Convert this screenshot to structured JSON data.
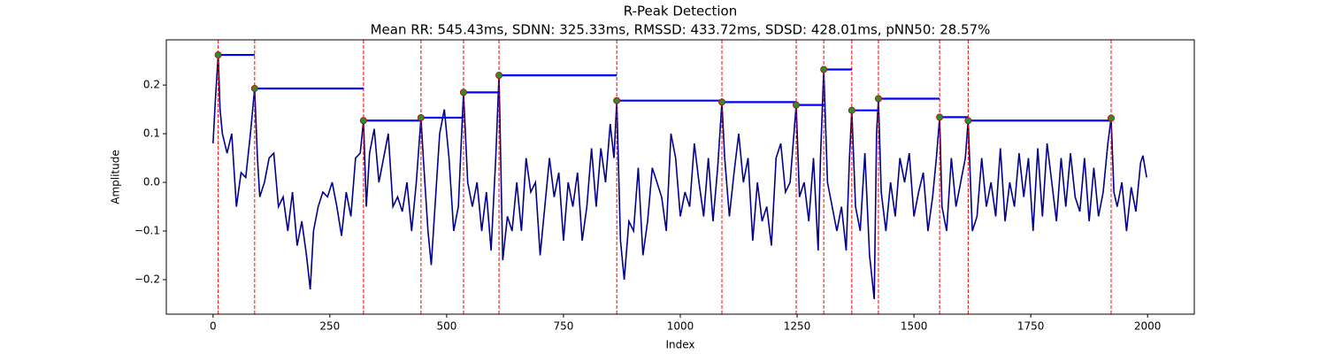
{
  "chart_data": {
    "type": "line",
    "title": "R-Peak Detection",
    "subtitle": "Mean RR: 545.43ms, SDNN: 325.33ms, RMSSD: 433.72ms, SDSD: 428.01ms, pNN50: 28.57%",
    "xlabel": "Index",
    "ylabel": "Amplitude",
    "xlim": [
      -100,
      2100
    ],
    "ylim": [
      -0.271,
      0.293
    ],
    "xticks": [
      0,
      250,
      500,
      750,
      1000,
      1250,
      1500,
      1750,
      2000
    ],
    "yticks": [
      {
        "value": -0.2,
        "label": "−0.2"
      },
      {
        "value": -0.1,
        "label": "−0.1"
      },
      {
        "value": 0,
        "label": "0.0"
      },
      0.1,
      0.2
    ],
    "series": [
      {
        "color": "#00008b",
        "x": [
          0,
          5,
          11,
          15,
          20,
          30,
          40,
          50,
          60,
          70,
          80,
          89,
          95,
          100,
          110,
          120,
          130,
          140,
          150,
          160,
          170,
          180,
          190,
          200,
          208,
          215,
          225,
          235,
          245,
          255,
          265,
          275,
          285,
          295,
          305,
          315,
          322,
          328,
          335,
          345,
          355,
          365,
          375,
          385,
          395,
          405,
          415,
          425,
          435,
          445,
          450,
          460,
          467,
          475,
          485,
          495,
          505,
          515,
          525,
          536,
          545,
          555,
          565,
          575,
          585,
          595,
          605,
          612,
          620,
          630,
          640,
          650,
          660,
          670,
          680,
          690,
          700,
          710,
          720,
          730,
          740,
          750,
          760,
          770,
          780,
          790,
          800,
          810,
          820,
          830,
          840,
          850,
          858,
          864,
          872,
          880,
          890,
          900,
          910,
          920,
          930,
          940,
          950,
          960,
          970,
          980,
          990,
          1000,
          1010,
          1020,
          1030,
          1040,
          1050,
          1060,
          1070,
          1080,
          1089,
          1095,
          1105,
          1115,
          1125,
          1135,
          1145,
          1155,
          1165,
          1175,
          1185,
          1195,
          1205,
          1215,
          1225,
          1235,
          1248,
          1255,
          1265,
          1275,
          1285,
          1295,
          1300,
          1307,
          1315,
          1325,
          1335,
          1345,
          1355,
          1362,
          1367,
          1375,
          1385,
          1395,
          1405,
          1415,
          1420,
          1424,
          1430,
          1440,
          1450,
          1460,
          1470,
          1480,
          1490,
          1500,
          1510,
          1520,
          1530,
          1540,
          1548,
          1555,
          1560,
          1570,
          1580,
          1590,
          1600,
          1610,
          1616,
          1625,
          1635,
          1645,
          1655,
          1665,
          1675,
          1685,
          1695,
          1705,
          1715,
          1725,
          1735,
          1745,
          1755,
          1765,
          1775,
          1785,
          1795,
          1805,
          1815,
          1825,
          1835,
          1845,
          1855,
          1865,
          1875,
          1885,
          1895,
          1905,
          1915,
          1922,
          1928,
          1935,
          1945,
          1955,
          1965,
          1975,
          1985,
          1990,
          1998
        ],
        "values": [
          0.08,
          0.17,
          0.262,
          0.15,
          0.1,
          0.06,
          0.1,
          -0.05,
          0.02,
          0.01,
          0.1,
          0.193,
          0.05,
          -0.03,
          0.0,
          0.05,
          0.06,
          -0.05,
          -0.03,
          -0.1,
          -0.02,
          -0.13,
          -0.08,
          -0.15,
          -0.22,
          -0.1,
          -0.05,
          -0.02,
          -0.03,
          0.0,
          -0.05,
          -0.11,
          -0.02,
          -0.07,
          0.05,
          0.06,
          0.127,
          -0.05,
          0.06,
          0.11,
          0.0,
          0.05,
          0.1,
          -0.05,
          -0.03,
          -0.06,
          0.0,
          -0.1,
          0.0,
          0.133,
          0.05,
          -0.1,
          -0.17,
          -0.05,
          0.1,
          0.15,
          0.05,
          -0.1,
          -0.05,
          0.185,
          0.0,
          -0.05,
          0.0,
          -0.1,
          -0.02,
          -0.14,
          0.05,
          0.22,
          -0.16,
          -0.07,
          -0.1,
          0.0,
          -0.1,
          0.05,
          -0.02,
          0.0,
          -0.15,
          -0.05,
          0.05,
          -0.03,
          0.02,
          -0.12,
          0.0,
          -0.05,
          0.02,
          -0.12,
          -0.05,
          0.07,
          -0.05,
          0.07,
          0.0,
          0.12,
          0.05,
          0.168,
          -0.12,
          -0.2,
          -0.08,
          -0.1,
          0.03,
          -0.15,
          -0.08,
          0.03,
          0.0,
          -0.03,
          -0.1,
          0.1,
          0.05,
          -0.07,
          -0.02,
          -0.05,
          0.08,
          0.0,
          -0.07,
          0.05,
          -0.08,
          0.03,
          0.165,
          0.05,
          -0.07,
          0.02,
          0.1,
          0.0,
          0.05,
          -0.12,
          0.0,
          -0.08,
          -0.05,
          -0.13,
          0.05,
          0.08,
          -0.02,
          0.0,
          0.159,
          -0.03,
          0.0,
          -0.08,
          0.05,
          -0.14,
          0.05,
          0.232,
          0.0,
          -0.05,
          -0.1,
          -0.05,
          -0.14,
          0.05,
          0.148,
          -0.05,
          -0.1,
          0.06,
          -0.15,
          -0.24,
          0.1,
          0.172,
          -0.02,
          -0.1,
          0.0,
          -0.07,
          0.05,
          0.0,
          0.06,
          -0.07,
          -0.02,
          0.02,
          -0.1,
          -0.03,
          0.05,
          0.134,
          -0.05,
          -0.1,
          0.05,
          -0.05,
          0.0,
          0.05,
          0.127,
          -0.1,
          -0.07,
          0.05,
          -0.05,
          0.0,
          -0.07,
          0.07,
          -0.08,
          0.0,
          -0.05,
          0.06,
          -0.03,
          0.05,
          -0.1,
          0.07,
          -0.07,
          0.08,
          0.0,
          -0.08,
          0.05,
          -0.05,
          0.06,
          -0.03,
          -0.06,
          0.05,
          -0.08,
          0.03,
          -0.07,
          -0.02,
          0.08,
          0.132,
          -0.02,
          -0.05,
          0.0,
          -0.1,
          -0.01,
          -0.06,
          0.04,
          0.055,
          0.01
        ]
      }
    ],
    "peaks": {
      "color": "#2e8b2e",
      "edge_color": "#cc0000",
      "line_color": "#ff0000",
      "rr_color": "#0000ff",
      "x": [
        11,
        89,
        322,
        445,
        536,
        612,
        864,
        1089,
        1248,
        1307,
        1367,
        1424,
        1555,
        1616,
        1922
      ],
      "values": [
        0.262,
        0.193,
        0.127,
        0.133,
        0.185,
        0.22,
        0.168,
        0.165,
        0.159,
        0.232,
        0.148,
        0.172,
        0.134,
        0.127,
        0.132
      ]
    }
  }
}
